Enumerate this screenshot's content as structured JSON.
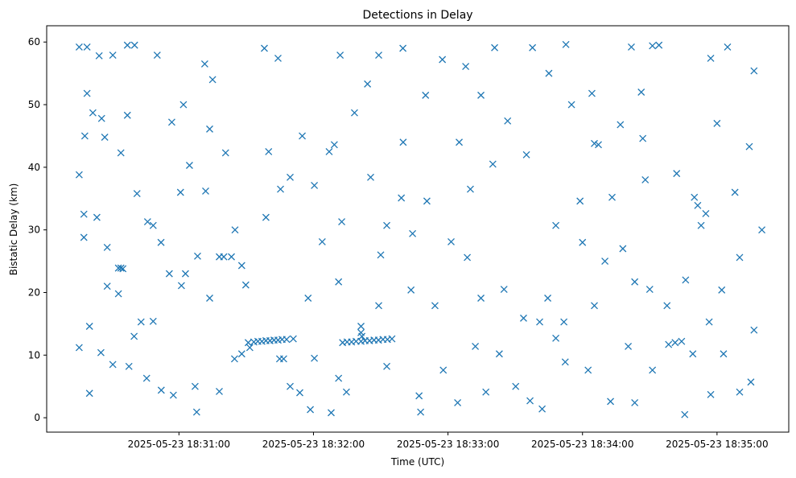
{
  "chart_data": {
    "type": "scatter",
    "title": "Detections in Delay",
    "xlabel": "Time (UTC)",
    "ylabel": "Bistatic Delay (km)",
    "x_units": "seconds after 2025-05-23 18:30:00",
    "xlim": [
      1,
      332
    ],
    "ylim": [
      -2.3,
      62.6
    ],
    "x_ticks": [
      {
        "value": 60,
        "label": "2025-05-23 18:31:00"
      },
      {
        "value": 120,
        "label": "2025-05-23 18:32:00"
      },
      {
        "value": 180,
        "label": "2025-05-23 18:33:00"
      },
      {
        "value": 240,
        "label": "2025-05-23 18:34:00"
      },
      {
        "value": 300,
        "label": "2025-05-23 18:35:00"
      }
    ],
    "y_ticks": [
      {
        "value": 0,
        "label": "0"
      },
      {
        "value": 10,
        "label": "10"
      },
      {
        "value": 20,
        "label": "20"
      },
      {
        "value": 30,
        "label": "30"
      },
      {
        "value": 40,
        "label": "40"
      },
      {
        "value": 50,
        "label": "50"
      },
      {
        "value": 60,
        "label": "60"
      }
    ],
    "grid": false,
    "marker": "x",
    "color": "#1f77b4",
    "series": [
      {
        "name": "detections",
        "points": [
          [
            15.5,
            38.8
          ],
          [
            15.5,
            11.2
          ],
          [
            15.5,
            59.2
          ],
          [
            17.6,
            32.5
          ],
          [
            17.6,
            28.8
          ],
          [
            19.0,
            59.2
          ],
          [
            19.0,
            51.8
          ],
          [
            20.1,
            14.6
          ],
          [
            20.1,
            3.9
          ],
          [
            23.4,
            32.0
          ],
          [
            24.4,
            57.8
          ],
          [
            25.5,
            47.8
          ],
          [
            28.0,
            27.2
          ],
          [
            30.5,
            57.9
          ],
          [
            33.0,
            23.9
          ],
          [
            34.1,
            23.9
          ],
          [
            35.0,
            23.8
          ],
          [
            33.0,
            19.8
          ],
          [
            37.0,
            59.5
          ],
          [
            37.0,
            48.3
          ],
          [
            37.7,
            8.2
          ],
          [
            40.2,
            59.5
          ],
          [
            43.1,
            15.3
          ],
          [
            48.5,
            15.4
          ],
          [
            46.0,
            31.3
          ],
          [
            50.3,
            57.9
          ],
          [
            52.1,
            4.4
          ],
          [
            56.8,
            47.2
          ],
          [
            57.5,
            3.6
          ],
          [
            60.7,
            36.0
          ],
          [
            61.1,
            21.1
          ],
          [
            68.3,
            25.8
          ],
          [
            67.9,
            0.9
          ],
          [
            71.9,
            36.2
          ],
          [
            71.5,
            56.5
          ],
          [
            78.0,
            25.7
          ],
          [
            80.0,
            25.7
          ],
          [
            83.4,
            25.7
          ],
          [
            84.8,
            9.4
          ],
          [
            89.8,
            21.2
          ],
          [
            90.9,
            12.0
          ],
          [
            91.6,
            11.2
          ],
          [
            93.4,
            12.1
          ],
          [
            95.2,
            12.2
          ],
          [
            97.0,
            12.2
          ],
          [
            98.8,
            12.3
          ],
          [
            100.6,
            12.3
          ],
          [
            102.4,
            12.4
          ],
          [
            104.2,
            12.4
          ],
          [
            106.0,
            12.5
          ],
          [
            108.0,
            12.5
          ],
          [
            111.0,
            12.6
          ],
          [
            98.1,
            59.0
          ],
          [
            104.9,
            9.4
          ],
          [
            106.7,
            9.4
          ],
          [
            105.3,
            36.5
          ],
          [
            104.2,
            57.4
          ],
          [
            113.9,
            4.0
          ],
          [
            118.6,
            1.3
          ],
          [
            129.3,
            43.6
          ],
          [
            127.9,
            0.8
          ],
          [
            131.9,
            57.9
          ],
          [
            132.6,
            31.3
          ],
          [
            134.7,
            4.1
          ],
          [
            133.0,
            12.0
          ],
          [
            135.0,
            12.1
          ],
          [
            137.0,
            12.1
          ],
          [
            139.0,
            12.2
          ],
          [
            141.2,
            12.2
          ],
          [
            143.0,
            12.3
          ],
          [
            145.0,
            12.3
          ],
          [
            147.0,
            12.4
          ],
          [
            149.0,
            12.4
          ],
          [
            151.0,
            12.5
          ],
          [
            153.0,
            12.5
          ],
          [
            155.0,
            12.6
          ],
          [
            141.2,
            14.6
          ],
          [
            141.2,
            13.6
          ],
          [
            141.6,
            13.0
          ],
          [
            144.1,
            53.3
          ],
          [
            149.1,
            57.9
          ],
          [
            159.9,
            59.0
          ],
          [
            159.2,
            35.1
          ],
          [
            167.8,
            0.9
          ],
          [
            167.1,
            3.5
          ],
          [
            177.5,
            57.2
          ],
          [
            184.3,
            2.4
          ],
          [
            187.9,
            56.1
          ],
          [
            194.7,
            51.5
          ],
          [
            194.7,
            19.1
          ],
          [
            196.9,
            4.1
          ],
          [
            200.8,
            59.1
          ],
          [
            206.6,
            47.4
          ],
          [
            217.7,
            59.1
          ],
          [
            222.0,
            1.4
          ],
          [
            216.6,
            2.7
          ],
          [
            232.6,
            59.6
          ],
          [
            235.1,
            50.0
          ],
          [
            232.3,
            8.9
          ],
          [
            244.2,
            51.8
          ],
          [
            245.3,
            43.8
          ],
          [
            247.1,
            43.6
          ],
          [
            252.5,
            2.6
          ],
          [
            261.8,
            59.2
          ],
          [
            263.3,
            2.4
          ],
          [
            266.2,
            52.0
          ],
          [
            266.9,
            44.6
          ],
          [
            271.2,
            59.4
          ],
          [
            274.1,
            59.5
          ],
          [
            278.4,
            11.7
          ],
          [
            281.3,
            12.0
          ],
          [
            284.2,
            12.2
          ],
          [
            285.6,
            0.5
          ],
          [
            289.9,
            35.2
          ],
          [
            291.4,
            33.9
          ],
          [
            297.2,
            57.4
          ],
          [
            297.2,
            3.7
          ],
          [
            304.7,
            59.2
          ],
          [
            302.9,
            10.2
          ],
          [
            310.1,
            4.1
          ],
          [
            315.1,
            5.7
          ],
          [
            316.5,
            55.4
          ],
          [
            316.5,
            14.0
          ],
          [
            314.4,
            43.3
          ],
          [
            310.1,
            25.6
          ],
          [
            295.0,
            32.6
          ],
          [
            292.9,
            30.7
          ],
          [
            296.5,
            15.3
          ],
          [
            256.9,
            46.8
          ],
          [
            253.2,
            35.2
          ],
          [
            238.9,
            34.6
          ],
          [
            228.1,
            30.7
          ],
          [
            213.7,
            15.9
          ],
          [
            202.9,
            10.2
          ],
          [
            188.6,
            25.6
          ],
          [
            181.4,
            28.1
          ],
          [
            170.6,
            34.6
          ],
          [
            164.2,
            29.4
          ],
          [
            152.7,
            30.7
          ],
          [
            145.5,
            38.4
          ],
          [
            138.3,
            48.7
          ],
          [
            123.9,
            28.1
          ],
          [
            120.4,
            37.1
          ],
          [
            109.6,
            38.4
          ],
          [
            98.8,
            32.0
          ],
          [
            88.0,
            24.3
          ],
          [
            80.8,
            42.3
          ],
          [
            73.7,
            46.1
          ],
          [
            64.7,
            40.3
          ],
          [
            55.7,
            23.0
          ],
          [
            48.5,
            30.7
          ],
          [
            41.3,
            35.8
          ],
          [
            34.1,
            42.3
          ],
          [
            26.9,
            44.8
          ],
          [
            21.6,
            48.7
          ],
          [
            25.2,
            10.4
          ],
          [
            30.5,
            8.5
          ],
          [
            45.6,
            6.3
          ],
          [
            67.2,
            5.0
          ],
          [
            78.0,
            4.2
          ],
          [
            88.0,
            10.2
          ],
          [
            109.6,
            5.0
          ],
          [
            120.4,
            9.5
          ],
          [
            131.2,
            6.3
          ],
          [
            152.7,
            8.2
          ],
          [
            177.9,
            7.6
          ],
          [
            192.2,
            11.4
          ],
          [
            210.2,
            5.0
          ],
          [
            228.1,
            12.7
          ],
          [
            242.5,
            7.6
          ],
          [
            260.4,
            11.4
          ],
          [
            271.2,
            7.6
          ],
          [
            289.2,
            10.2
          ],
          [
            231.7,
            15.3
          ],
          [
            220.9,
            15.3
          ],
          [
            224.5,
            19.1
          ],
          [
            245.3,
            17.9
          ],
          [
            263.3,
            21.7
          ],
          [
            277.7,
            17.9
          ],
          [
            302.1,
            20.4
          ],
          [
            174.2,
            17.9
          ],
          [
            163.5,
            20.4
          ],
          [
            149.1,
            17.9
          ],
          [
            131.2,
            21.7
          ],
          [
            117.6,
            19.1
          ],
          [
            73.7,
            19.1
          ],
          [
            62.9,
            23.0
          ],
          [
            170.0,
            51.5
          ],
          [
            185.0,
            44.0
          ],
          [
            200.0,
            40.5
          ],
          [
            215.0,
            42.0
          ],
          [
            225.0,
            55.0
          ],
          [
            250.0,
            25.0
          ],
          [
            258.0,
            27.0
          ],
          [
            268.0,
            38.0
          ],
          [
            282.0,
            39.0
          ],
          [
            300.0,
            47.0
          ],
          [
            308.0,
            36.0
          ],
          [
            320.0,
            30.0
          ],
          [
            286.0,
            22.0
          ],
          [
            270.0,
            20.5
          ],
          [
            240.0,
            28.0
          ],
          [
            205.0,
            20.5
          ],
          [
            190.0,
            36.5
          ],
          [
            160.0,
            44.0
          ],
          [
            150.0,
            26.0
          ],
          [
            127.0,
            42.5
          ],
          [
            115.0,
            45.0
          ],
          [
            100.0,
            42.5
          ],
          [
            85.0,
            30.0
          ],
          [
            75.0,
            54.0
          ],
          [
            62.0,
            50.0
          ],
          [
            52.0,
            28.0
          ],
          [
            40.0,
            13.0
          ],
          [
            28.0,
            21.0
          ],
          [
            18.0,
            45.0
          ]
        ]
      }
    ]
  }
}
